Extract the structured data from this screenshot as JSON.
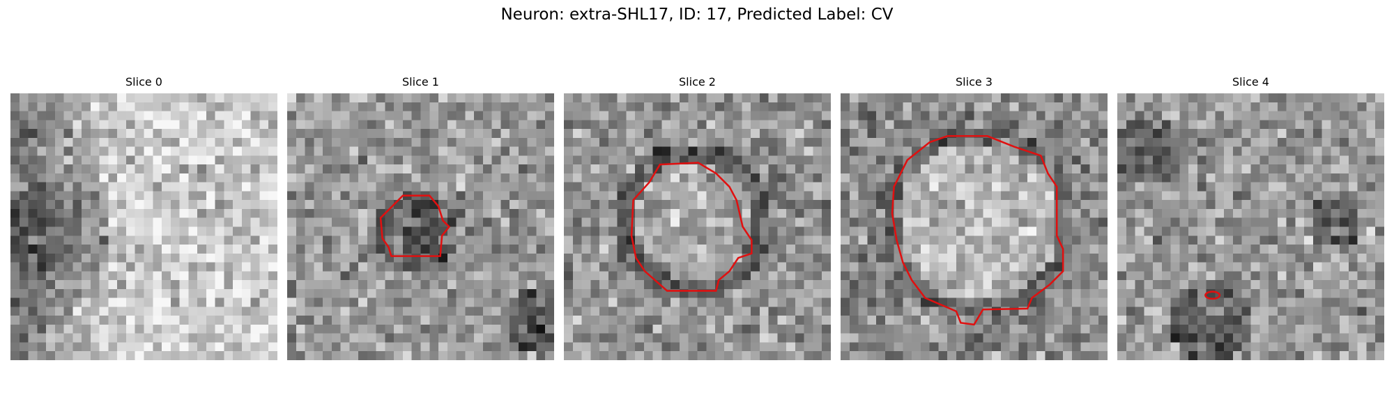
{
  "header": {
    "title": "Neuron: extra-SHL17, ID: 17, Predicted Label: CV"
  },
  "panels": [
    {
      "title": "Slice 0"
    },
    {
      "title": "Slice 1"
    },
    {
      "title": "Slice 2"
    },
    {
      "title": "Slice 3"
    },
    {
      "title": "Slice 4"
    }
  ]
}
